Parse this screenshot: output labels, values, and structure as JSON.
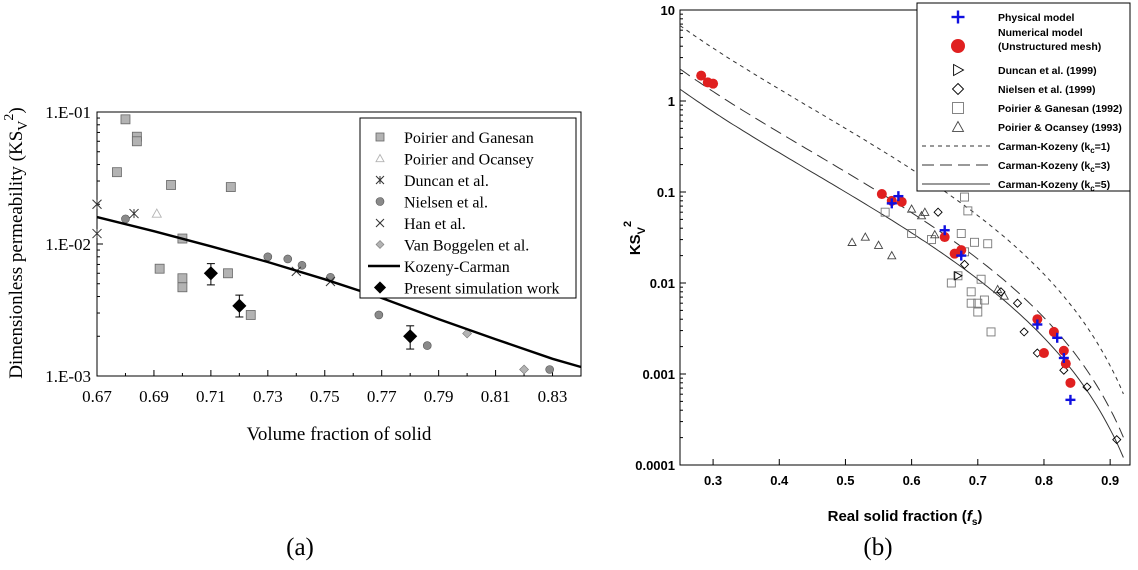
{
  "chart_data": [
    {
      "type": "scatter",
      "panel_label": "(a)",
      "xlabel": "Volume fraction of solid",
      "ylabel": "Dimensionless permeability (KSv²)",
      "ylabel_main": "Dimensionless permeability (KS",
      "ylabel_sub": "V",
      "ylabel_sup": "2",
      "ylabel_close": ")",
      "xlim": [
        0.67,
        0.84
      ],
      "ylim": [
        0.001,
        0.1
      ],
      "yscale": "log",
      "x_ticks": [
        "0.67",
        "0.69",
        "0.71",
        "0.73",
        "0.75",
        "0.77",
        "0.79",
        "0.81",
        "0.83"
      ],
      "x_tick_values": [
        0.67,
        0.69,
        0.71,
        0.73,
        0.75,
        0.77,
        0.79,
        0.81,
        0.83
      ],
      "y_ticks": [
        "1.E-01",
        "1.E-02",
        "1.E-03"
      ],
      "y_tick_values": [
        0.1,
        0.01,
        0.001
      ],
      "legend_position": "top-right",
      "series": [
        {
          "name": "Poirier  and Ganesan",
          "marker": "square",
          "color": "#b3b3b3",
          "points": [
            [
              0.68,
              0.088
            ],
            [
              0.684,
              0.065
            ],
            [
              0.684,
              0.06
            ],
            [
              0.677,
              0.035
            ],
            [
              0.696,
              0.028
            ],
            [
              0.717,
              0.027
            ],
            [
              0.7,
              0.011
            ],
            [
              0.692,
              0.0065
            ],
            [
              0.7,
              0.0055
            ],
            [
              0.7,
              0.0047
            ],
            [
              0.716,
              0.006
            ],
            [
              0.724,
              0.0029
            ]
          ]
        },
        {
          "name": "Poirier  and Ocansey",
          "marker": "triangle",
          "color": "#b3b3b3",
          "points": [
            [
              0.691,
              0.017
            ]
          ]
        },
        {
          "name": "Duncan et al.",
          "marker": "asterisk",
          "color": "#333333",
          "points": [
            [
              0.67,
              0.02
            ],
            [
              0.67,
              0.012
            ],
            [
              0.683,
              0.017
            ]
          ]
        },
        {
          "name": "Nielsen  et al.",
          "marker": "circle",
          "color": "#8a8a8a",
          "points": [
            [
              0.68,
              0.0155
            ],
            [
              0.73,
              0.008
            ],
            [
              0.737,
              0.0077
            ],
            [
              0.742,
              0.0069
            ],
            [
              0.752,
              0.0056
            ],
            [
              0.769,
              0.0029
            ],
            [
              0.786,
              0.0017
            ],
            [
              0.829,
              0.00112
            ]
          ]
        },
        {
          "name": "Han et al.",
          "marker": "x",
          "color": "#333333",
          "points": [
            [
              0.74,
              0.0062
            ],
            [
              0.752,
              0.0052
            ]
          ]
        },
        {
          "name": "Van Boggelen et al.",
          "marker": "diamond",
          "color": "#b3b3b3",
          "points": [
            [
              0.8,
              0.0021
            ],
            [
              0.82,
              0.00112
            ]
          ]
        },
        {
          "name": "Kozeny-Carman",
          "marker": "line",
          "color": "#000000",
          "points": [
            [
              0.67,
              0.016
            ],
            [
              0.69,
              0.0125
            ],
            [
              0.71,
              0.0096
            ],
            [
              0.73,
              0.0073
            ],
            [
              0.75,
              0.0054
            ],
            [
              0.77,
              0.0039
            ],
            [
              0.79,
              0.0027
            ],
            [
              0.81,
              0.0019
            ],
            [
              0.83,
              0.00135
            ],
            [
              0.84,
              0.00117
            ]
          ]
        },
        {
          "name": "Present simulation work",
          "marker": "diamond-filled",
          "color": "#000000",
          "points": [
            [
              0.71,
              0.006
            ],
            [
              0.72,
              0.0034
            ],
            [
              0.78,
              0.002
            ]
          ],
          "error_low": [
            0.0049,
            0.0028,
            0.0016
          ],
          "error_high": [
            0.0071,
            0.0041,
            0.0024
          ]
        }
      ]
    },
    {
      "type": "scatter",
      "panel_label": "(b)",
      "xlabel": "Real solid fraction (fs)",
      "xlabel_main": "Real solid fraction (",
      "xlabel_italic": "f",
      "xlabel_sub": "s",
      "xlabel_close": ")",
      "ylabel": "KSV2",
      "ylabel_main": "KS",
      "ylabel_sub": "V",
      "ylabel_sup": "2",
      "xlim": [
        0.25,
        0.93
      ],
      "ylim": [
        0.0001,
        10
      ],
      "yscale": "log",
      "x_ticks": [
        "0.3",
        "0.4",
        "0.5",
        "0.6",
        "0.7",
        "0.8",
        "0.9"
      ],
      "x_tick_values": [
        0.3,
        0.4,
        0.5,
        0.6,
        0.7,
        0.8,
        0.9
      ],
      "y_ticks": [
        "10",
        "1",
        "0.1",
        "0.01",
        "0.001",
        "0.0001"
      ],
      "y_tick_values": [
        10,
        1,
        0.1,
        0.01,
        0.001,
        0.0001
      ],
      "legend_position": "top-right",
      "series": [
        {
          "name": "Physical model",
          "marker": "plus",
          "color": "#1010e0",
          "points": [
            [
              0.57,
              0.075
            ],
            [
              0.58,
              0.09
            ],
            [
              0.65,
              0.038
            ],
            [
              0.675,
              0.02
            ],
            [
              0.79,
              0.0035
            ],
            [
              0.82,
              0.0025
            ],
            [
              0.83,
              0.0015
            ],
            [
              0.84,
              0.00052
            ]
          ]
        },
        {
          "name": "Numerical model\n(Unstructured mesh)",
          "name_lines": [
            "Numerical model",
            "(Unstructured mesh)"
          ],
          "marker": "circle-filled",
          "color": "#e02020",
          "points": [
            [
              0.282,
              1.9
            ],
            [
              0.292,
              1.6
            ],
            [
              0.3,
              1.55
            ],
            [
              0.555,
              0.095
            ],
            [
              0.57,
              0.08
            ],
            [
              0.585,
              0.078
            ],
            [
              0.65,
              0.032
            ],
            [
              0.665,
              0.021
            ],
            [
              0.675,
              0.023
            ],
            [
              0.79,
              0.004
            ],
            [
              0.8,
              0.0017
            ],
            [
              0.815,
              0.0029
            ],
            [
              0.83,
              0.0018
            ],
            [
              0.833,
              0.0013
            ],
            [
              0.84,
              0.0008
            ]
          ]
        },
        {
          "name": "Duncan et al. (1999)",
          "marker": "triangle-right",
          "color": "#000000",
          "points": [
            [
              0.67,
              0.012
            ]
          ]
        },
        {
          "name": "Nielsen et al. (1999)",
          "marker": "diamond",
          "color": "#000000",
          "points": [
            [
              0.64,
              0.06
            ],
            [
              0.68,
              0.016
            ],
            [
              0.735,
              0.008
            ],
            [
              0.76,
              0.006
            ],
            [
              0.77,
              0.0029
            ],
            [
              0.79,
              0.0017
            ],
            [
              0.83,
              0.0011
            ],
            [
              0.865,
              0.00072
            ],
            [
              0.91,
              0.00019
            ]
          ]
        },
        {
          "name": "Poirier & Ganesan (1992)",
          "marker": "square",
          "color": "#777777",
          "points": [
            [
              0.56,
              0.06
            ],
            [
              0.6,
              0.035
            ],
            [
              0.63,
              0.03
            ],
            [
              0.66,
              0.01
            ],
            [
              0.67,
              0.012
            ],
            [
              0.675,
              0.035
            ],
            [
              0.68,
              0.088
            ],
            [
              0.685,
              0.062
            ],
            [
              0.69,
              0.008
            ],
            [
              0.695,
              0.028
            ],
            [
              0.7,
              0.006
            ],
            [
              0.7,
              0.0048
            ],
            [
              0.705,
              0.011
            ],
            [
              0.71,
              0.0065
            ],
            [
              0.715,
              0.027
            ],
            [
              0.72,
              0.0029
            ],
            [
              0.68,
              0.022
            ],
            [
              0.69,
              0.006
            ]
          ]
        },
        {
          "name": "Poirier & Ocansey (1993)",
          "marker": "triangle",
          "color": "#444444",
          "points": [
            [
              0.51,
              0.028
            ],
            [
              0.53,
              0.032
            ],
            [
              0.55,
              0.026
            ],
            [
              0.57,
              0.02
            ],
            [
              0.6,
              0.065
            ],
            [
              0.615,
              0.055
            ],
            [
              0.62,
              0.06
            ],
            [
              0.635,
              0.034
            ],
            [
              0.73,
              0.0085
            ],
            [
              0.74,
              0.0072
            ]
          ]
        },
        {
          "name": "Carman-Kozeny (kc=1)",
          "name_main": "Carman-Kozeny (k",
          "name_sub": "c",
          "name_close": "=1)",
          "marker": "dash-short",
          "color": "#333333",
          "kc": 1
        },
        {
          "name": "Carman-Kozeny (kc=3)",
          "name_main": "Carman-Kozeny (k",
          "name_sub": "c",
          "name_close": "=3)",
          "marker": "dash-long",
          "color": "#333333",
          "kc": 3
        },
        {
          "name": "Carman-Kozeny (kc=5)",
          "name_main": "Carman-Kozeny (k",
          "name_sub": "c",
          "name_close": "=5)",
          "marker": "solid",
          "color": "#333333",
          "kc": 5
        }
      ]
    }
  ]
}
